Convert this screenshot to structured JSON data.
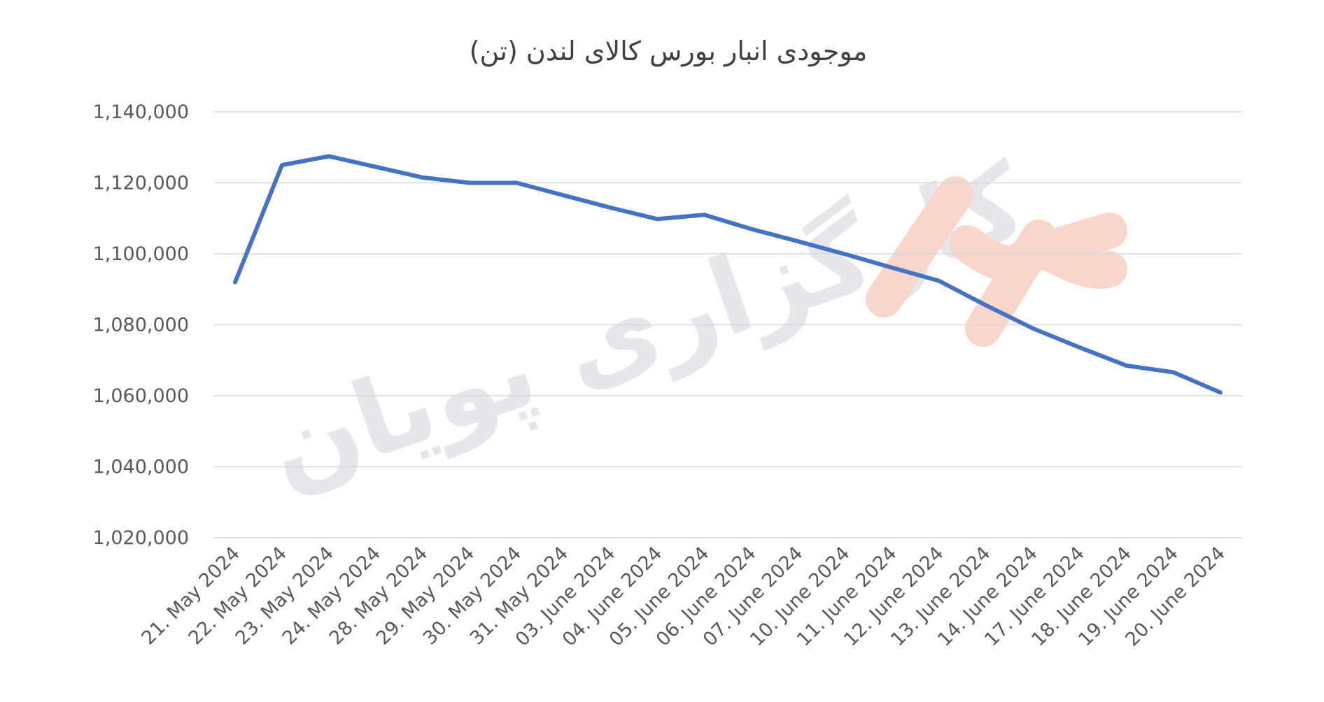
{
  "watermark": {
    "text": "کارگزاری پویان",
    "text_color": "#e6e6eb",
    "logo_color": "#f9d6cc"
  },
  "chart_data": {
    "type": "line",
    "title": "موجودی انبار بورس کالای لندن (تن)",
    "xlabel": "",
    "ylabel": "",
    "ylim": [
      1020000,
      1140000
    ],
    "yticks": [
      1020000,
      1040000,
      1060000,
      1080000,
      1100000,
      1120000,
      1140000
    ],
    "ytick_labels": [
      "1,020,000",
      "1,040,000",
      "1,060,000",
      "1,080,000",
      "1,100,000",
      "1,120,000",
      "1,140,000"
    ],
    "grid": true,
    "legend": "none",
    "line_color": "#4472c4",
    "categories": [
      "21. May 2024",
      "22. May 2024",
      "23. May 2024",
      "24. May 2024",
      "28. May 2024",
      "29. May 2024",
      "30. May 2024",
      "31. May 2024",
      "03. June 2024",
      "04. June 2024",
      "05. June 2024",
      "06. June 2024",
      "07. June 2024",
      "10. June 2024",
      "11. June 2024",
      "12. June 2024",
      "13. June 2024",
      "14. June 2024",
      "17. June 2024",
      "18. June 2024",
      "19. June 2024",
      "20. June 2024"
    ],
    "series": [
      {
        "values": [
          1092000,
          1125000,
          1127500,
          1124500,
          1121500,
          1120000,
          1120000,
          1116500,
          1113000,
          1109800,
          1111000,
          1107000,
          1103500,
          1099900,
          1096100,
          1092400,
          1085500,
          1079000,
          1073600,
          1068500,
          1066600,
          1060900
        ]
      }
    ]
  }
}
